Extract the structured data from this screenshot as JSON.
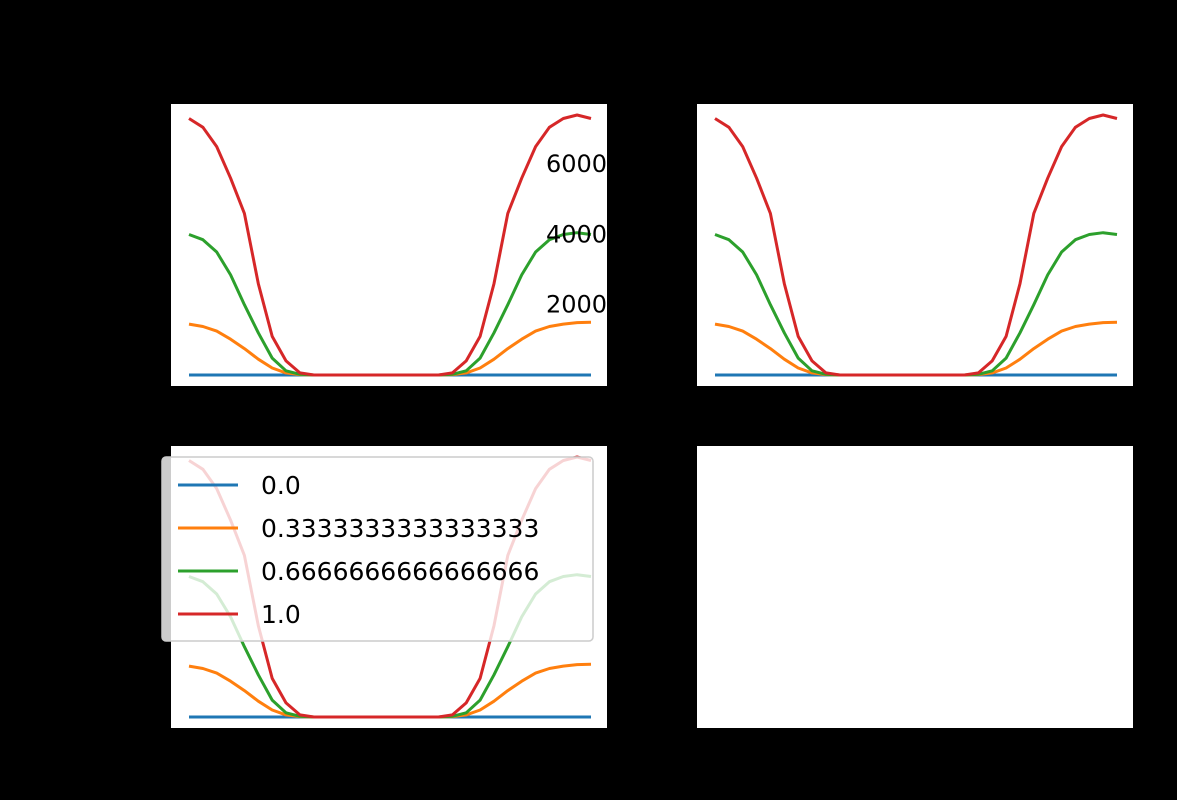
{
  "colors": {
    "background": "#000000",
    "axes_face": "#ffffff",
    "series": [
      "#1f77b4",
      "#ff7f0e",
      "#2ca02c",
      "#d62728"
    ]
  },
  "chart_data": [
    {
      "type": "line",
      "position": "top-left",
      "xlim": [
        0,
        30
      ],
      "ylim": [
        -500,
        7500
      ],
      "ytick_labels": [
        "2000",
        "4000",
        "6000"
      ],
      "ytick_values": [
        2000,
        4000,
        6000
      ],
      "x": [
        0,
        1,
        2,
        3,
        4,
        5,
        6,
        7,
        8,
        9,
        10,
        11,
        12,
        13,
        14,
        15,
        16,
        17,
        18,
        19,
        20,
        21,
        22,
        23,
        24,
        25,
        26,
        27,
        28,
        29
      ],
      "series": [
        {
          "name": "0.0",
          "values": [
            0,
            0,
            0,
            0,
            0,
            0,
            0,
            0,
            0,
            0,
            0,
            0,
            0,
            0,
            0,
            0,
            0,
            0,
            0,
            0,
            0,
            0,
            0,
            0,
            0,
            0,
            0,
            0,
            0,
            0
          ]
        },
        {
          "name": "0.3333333333333333",
          "values": [
            1450,
            1380,
            1250,
            1020,
            750,
            450,
            200,
            60,
            10,
            0,
            0,
            0,
            0,
            0,
            0,
            0,
            0,
            0,
            0,
            10,
            60,
            200,
            450,
            750,
            1020,
            1250,
            1380,
            1450,
            1490,
            1500
          ]
        },
        {
          "name": "0.6666666666666666",
          "values": [
            4000,
            3850,
            3500,
            2850,
            2000,
            1200,
            480,
            120,
            20,
            0,
            0,
            0,
            0,
            0,
            0,
            0,
            0,
            0,
            0,
            20,
            120,
            480,
            1200,
            2000,
            2850,
            3500,
            3850,
            4000,
            4050,
            4000
          ]
        },
        {
          "name": "1.0",
          "values": [
            7300,
            7050,
            6500,
            5600,
            4600,
            2600,
            1100,
            400,
            60,
            0,
            0,
            0,
            0,
            0,
            0,
            0,
            0,
            0,
            0,
            60,
            400,
            1100,
            2600,
            4600,
            5600,
            6500,
            7050,
            7300,
            7400,
            7300
          ]
        }
      ]
    },
    {
      "type": "line",
      "position": "top-right",
      "xlim": [
        0,
        30
      ],
      "ylim": [
        -500,
        7500
      ],
      "x": [
        0,
        1,
        2,
        3,
        4,
        5,
        6,
        7,
        8,
        9,
        10,
        11,
        12,
        13,
        14,
        15,
        16,
        17,
        18,
        19,
        20,
        21,
        22,
        23,
        24,
        25,
        26,
        27,
        28,
        29
      ],
      "series": [
        {
          "name": "0.0",
          "values": [
            0,
            0,
            0,
            0,
            0,
            0,
            0,
            0,
            0,
            0,
            0,
            0,
            0,
            0,
            0,
            0,
            0,
            0,
            0,
            0,
            0,
            0,
            0,
            0,
            0,
            0,
            0,
            0,
            0,
            0
          ]
        },
        {
          "name": "0.3333333333333333",
          "values": [
            1450,
            1380,
            1250,
            1020,
            750,
            450,
            200,
            60,
            10,
            0,
            0,
            0,
            0,
            0,
            0,
            0,
            0,
            0,
            0,
            10,
            60,
            200,
            450,
            750,
            1020,
            1250,
            1380,
            1450,
            1490,
            1500
          ]
        },
        {
          "name": "0.6666666666666666",
          "values": [
            4000,
            3850,
            3500,
            2850,
            2000,
            1200,
            480,
            120,
            20,
            0,
            0,
            0,
            0,
            0,
            0,
            0,
            0,
            0,
            0,
            20,
            120,
            480,
            1200,
            2000,
            2850,
            3500,
            3850,
            4000,
            4050,
            4000
          ]
        },
        {
          "name": "1.0",
          "values": [
            7300,
            7050,
            6500,
            5600,
            4600,
            2600,
            1100,
            400,
            60,
            0,
            0,
            0,
            0,
            0,
            0,
            0,
            0,
            0,
            0,
            60,
            400,
            1100,
            2600,
            4600,
            5600,
            6500,
            7050,
            7300,
            7400,
            7300
          ]
        }
      ]
    },
    {
      "type": "line",
      "position": "bottom-left",
      "xlim": [
        0,
        30
      ],
      "ylim": [
        -500,
        7500
      ],
      "legend": {
        "placement": "upper-left",
        "entries": [
          "0.0",
          "0.3333333333333333",
          "0.6666666666666666",
          "1.0"
        ]
      },
      "x": [
        0,
        1,
        2,
        3,
        4,
        5,
        6,
        7,
        8,
        9,
        10,
        11,
        12,
        13,
        14,
        15,
        16,
        17,
        18,
        19,
        20,
        21,
        22,
        23,
        24,
        25,
        26,
        27,
        28,
        29
      ],
      "series": [
        {
          "name": "0.0",
          "values": [
            0,
            0,
            0,
            0,
            0,
            0,
            0,
            0,
            0,
            0,
            0,
            0,
            0,
            0,
            0,
            0,
            0,
            0,
            0,
            0,
            0,
            0,
            0,
            0,
            0,
            0,
            0,
            0,
            0,
            0
          ]
        },
        {
          "name": "0.3333333333333333",
          "values": [
            1450,
            1380,
            1250,
            1020,
            750,
            450,
            200,
            60,
            10,
            0,
            0,
            0,
            0,
            0,
            0,
            0,
            0,
            0,
            0,
            10,
            60,
            200,
            450,
            750,
            1020,
            1250,
            1380,
            1450,
            1490,
            1500
          ]
        },
        {
          "name": "0.6666666666666666",
          "values": [
            4000,
            3850,
            3500,
            2850,
            2000,
            1200,
            480,
            120,
            20,
            0,
            0,
            0,
            0,
            0,
            0,
            0,
            0,
            0,
            0,
            20,
            120,
            480,
            1200,
            2000,
            2850,
            3500,
            3850,
            4000,
            4050,
            4000
          ]
        },
        {
          "name": "1.0",
          "values": [
            7300,
            7050,
            6500,
            5600,
            4600,
            2600,
            1100,
            400,
            60,
            0,
            0,
            0,
            0,
            0,
            0,
            0,
            0,
            0,
            0,
            60,
            400,
            1100,
            2600,
            4600,
            5600,
            6500,
            7050,
            7300,
            7400,
            7300
          ]
        }
      ]
    },
    {
      "type": "line",
      "position": "bottom-right",
      "series": []
    }
  ]
}
